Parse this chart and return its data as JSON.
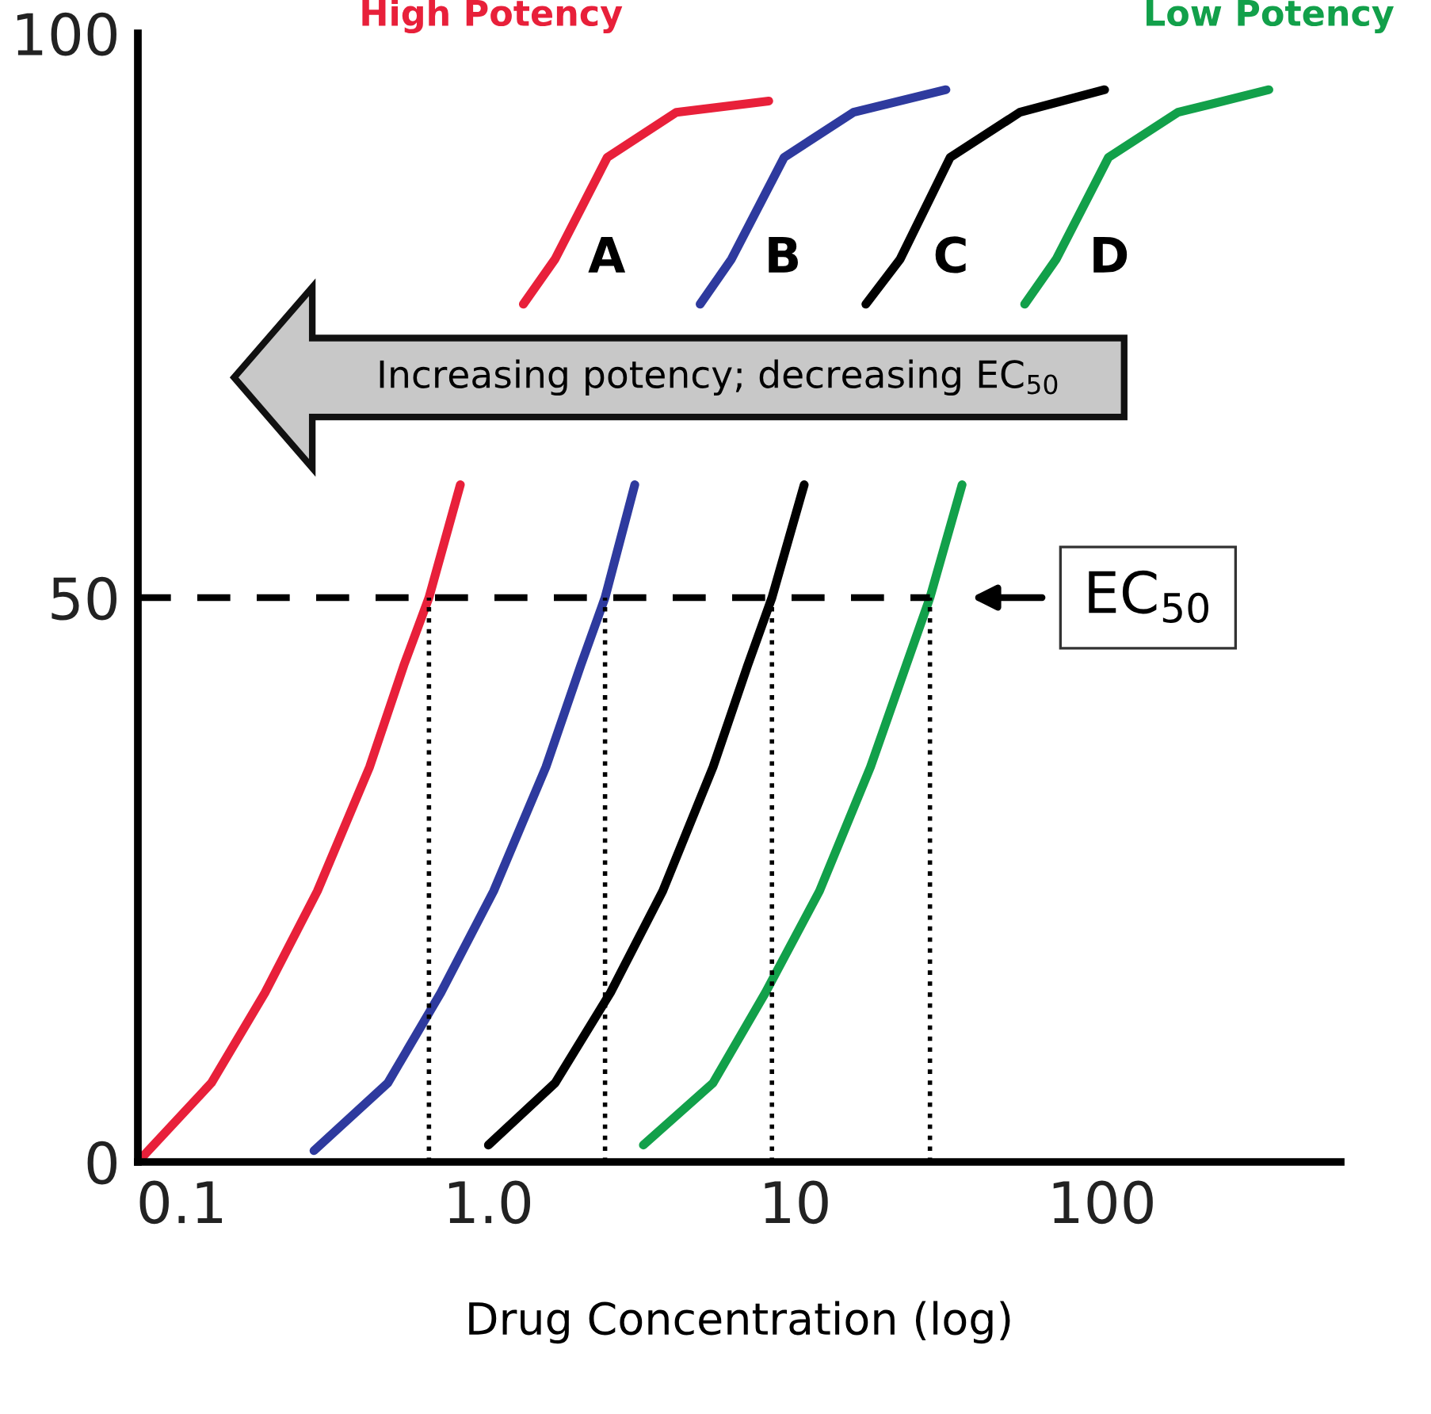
{
  "chart_data": {
    "type": "line",
    "xlabel": "Drug Concentration (log)",
    "series": [
      {
        "name": "A",
        "color": "#e8203a",
        "x": [
          0.072,
          0.125,
          0.187,
          0.277,
          0.41,
          0.53,
          0.64,
          0.81,
          1.02,
          1.3,
          1.65,
          2.44,
          4.1,
          8.2
        ],
        "values": [
          0,
          7,
          15,
          24,
          35,
          44,
          50,
          60,
          null,
          76,
          80,
          89,
          93,
          94
        ]
      },
      {
        "name": "B",
        "color": "#2e3a9e",
        "x": [
          0.27,
          0.47,
          0.7,
          1.04,
          1.54,
          2.0,
          2.4,
          3.0,
          3.8,
          4.9,
          6.2,
          9.2,
          15.5,
          31
        ],
        "values": [
          1,
          7,
          15,
          24,
          35,
          44,
          50,
          60,
          null,
          76,
          80,
          89,
          93,
          95
        ]
      },
      {
        "name": "C",
        "color": "#000000",
        "x": [
          1.0,
          1.65,
          2.5,
          3.7,
          5.4,
          7.0,
          8.4,
          10.7,
          13.5,
          17,
          22,
          32,
          54,
          102
        ],
        "values": [
          1.5,
          7,
          15,
          24,
          35,
          44,
          50,
          60,
          null,
          76,
          80,
          89,
          93,
          95
        ]
      },
      {
        "name": "D",
        "color": "#12a04a",
        "x": [
          3.2,
          5.4,
          8.0,
          12,
          17.6,
          23,
          27.5,
          35,
          44,
          56,
          71,
          105,
          177,
          350
        ],
        "values": [
          1.5,
          7,
          15,
          24,
          35,
          44,
          50,
          60,
          null,
          76,
          80,
          89,
          93,
          95
        ]
      }
    ],
    "log": "x",
    "xlim": [
      0.072,
      600
    ],
    "ylim": [
      0,
      100
    ],
    "xticks": [
      {
        "value": 0.1,
        "label": "0.1"
      },
      {
        "value": 1,
        "label": "1.0"
      },
      10,
      100
    ],
    "yticks": [
      0,
      50,
      100
    ],
    "ref_lines": [
      {
        "axis": "y",
        "value": 50,
        "label": "EC$_{50}$",
        "line_style": "dashed",
        "color": "#000000"
      },
      {
        "axis": "x",
        "value": 0.64,
        "line_style": "dotted",
        "color": "#000000"
      },
      {
        "axis": "x",
        "value": 2.4,
        "line_style": "dotted",
        "color": "#000000"
      },
      {
        "axis": "x",
        "value": 8.4,
        "line_style": "dotted",
        "color": "#000000"
      },
      {
        "axis": "x",
        "value": 27.5,
        "line_style": "dotted",
        "color": "#000000"
      }
    ],
    "annotations": [
      "High Potency",
      "Low Potency",
      "Increasing potency; decreasing EC$_{50}$"
    ],
    "grid": false,
    "legend": false,
    "marker": "none",
    "line_style": "solid"
  }
}
